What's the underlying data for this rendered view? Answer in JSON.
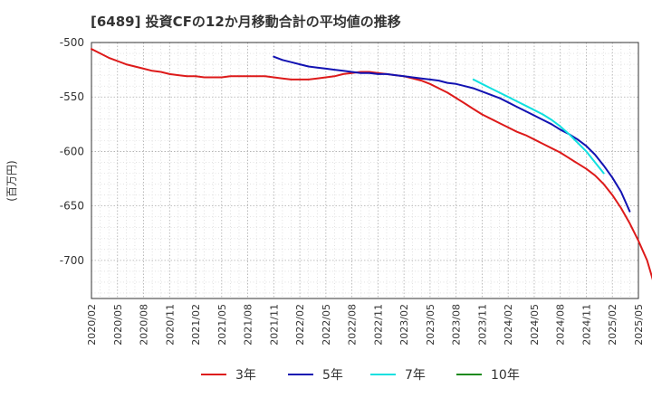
{
  "chart_data": {
    "type": "line",
    "title": "[6489]  投資CFの12か月移動合計の平均値の推移",
    "ylabel": "(百万円)",
    "xlabel": "",
    "ylim": [
      -735,
      -500
    ],
    "yticks": [
      -500,
      -550,
      -600,
      -650,
      -700
    ],
    "x_ticks": [
      "2020/02",
      "2020/05",
      "2020/08",
      "2020/11",
      "2021/02",
      "2021/05",
      "2021/08",
      "2021/11",
      "2022/02",
      "2022/05",
      "2022/08",
      "2022/11",
      "2023/02",
      "2023/05",
      "2023/08",
      "2023/11",
      "2024/02",
      "2024/05",
      "2024/08",
      "2024/11",
      "2025/02",
      "2025/05"
    ],
    "grid": true,
    "legend_position": "bottom",
    "series": [
      {
        "name": "3年",
        "color": "#dd1a1a",
        "start": "2020/02",
        "values": [
          -506,
          -510,
          -514,
          -517,
          -520,
          -522,
          -524,
          -526,
          -527,
          -529,
          -530,
          -531,
          -531,
          -532,
          -532,
          -532,
          -531,
          -531,
          -531,
          -531,
          -531,
          -532,
          -533,
          -534,
          -534,
          -534,
          -533,
          -532,
          -531,
          -529,
          -528,
          -527,
          -527,
          -528,
          -529,
          -530,
          -531,
          -533,
          -535,
          -538,
          -542,
          -546,
          -551,
          -556,
          -561,
          -566,
          -570,
          -574,
          -578,
          -582,
          -585,
          -589,
          -593,
          -597,
          -601,
          -606,
          -611,
          -616,
          -622,
          -630,
          -640,
          -652,
          -666,
          -682,
          -700,
          -727
        ]
      },
      {
        "name": "5年",
        "color": "#1212b2",
        "start": "2021/11",
        "values": [
          -513,
          -516,
          -518,
          -520,
          -522,
          -523,
          -524,
          -525,
          -526,
          -527,
          -528,
          -528,
          -529,
          -529,
          -530,
          -531,
          -532,
          -533,
          -534,
          -535,
          -537,
          -538,
          -540,
          -542,
          -545,
          -548,
          -551,
          -555,
          -559,
          -563,
          -567,
          -571,
          -575,
          -580,
          -584,
          -589,
          -595,
          -603,
          -613,
          -624,
          -637,
          -655
        ]
      },
      {
        "name": "7年",
        "color": "#10e0e0",
        "start": "2023/10",
        "values": [
          -534,
          -538,
          -542,
          -546,
          -550,
          -554,
          -558,
          -562,
          -566,
          -571,
          -577,
          -584,
          -592,
          -600,
          -610,
          -620
        ]
      },
      {
        "name": "10年",
        "color": "#1e8a1e",
        "start": "2020/02",
        "values": []
      }
    ]
  }
}
